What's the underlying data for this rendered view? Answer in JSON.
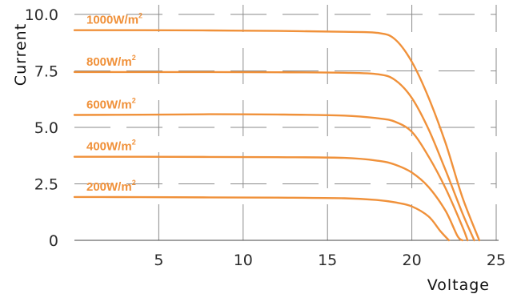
{
  "chart_data": {
    "type": "line",
    "title": "",
    "xlabel": "Voltage",
    "ylabel": "Current",
    "xlim": [
      0,
      25
    ],
    "ylim": [
      0,
      10
    ],
    "x_ticks": [
      "5",
      "10",
      "15",
      "20",
      "25"
    ],
    "y_ticks": [
      "0",
      "2.5",
      "5.0",
      "7.5",
      "10.0"
    ],
    "grid": true,
    "color": "#F0913A",
    "series": [
      {
        "name": "1000W/m²",
        "label_text": "1000W/m",
        "label_sup": "2",
        "points": [
          [
            0,
            9.3
          ],
          [
            4,
            9.3
          ],
          [
            8,
            9.29
          ],
          [
            12,
            9.27
          ],
          [
            16,
            9.23
          ],
          [
            18,
            9.18
          ],
          [
            19,
            8.9
          ],
          [
            20,
            7.9
          ],
          [
            21,
            6.3
          ],
          [
            22,
            4.3
          ],
          [
            23,
            1.9
          ],
          [
            24,
            0
          ]
        ]
      },
      {
        "name": "800W/m²",
        "label_text": "800W/m",
        "label_sup": "2",
        "points": [
          [
            0,
            7.45
          ],
          [
            4,
            7.45
          ],
          [
            8,
            7.45
          ],
          [
            12,
            7.44
          ],
          [
            16,
            7.42
          ],
          [
            18,
            7.35
          ],
          [
            19,
            7.1
          ],
          [
            20,
            6.3
          ],
          [
            21,
            4.9
          ],
          [
            22,
            3.1
          ],
          [
            23,
            1.2
          ],
          [
            23.7,
            0
          ]
        ]
      },
      {
        "name": "600W/m²",
        "label_text": "600W/m",
        "label_sup": "2",
        "points": [
          [
            0,
            5.55
          ],
          [
            4,
            5.56
          ],
          [
            8,
            5.58
          ],
          [
            12,
            5.57
          ],
          [
            16,
            5.52
          ],
          [
            18,
            5.4
          ],
          [
            19,
            5.25
          ],
          [
            20,
            4.8
          ],
          [
            21,
            3.7
          ],
          [
            22,
            2.3
          ],
          [
            23,
            0.6
          ],
          [
            23.3,
            0
          ]
        ]
      },
      {
        "name": "400W/m²",
        "label_text": "400W/m",
        "label_sup": "2",
        "points": [
          [
            0,
            3.7
          ],
          [
            4,
            3.7
          ],
          [
            8,
            3.69
          ],
          [
            12,
            3.68
          ],
          [
            16,
            3.65
          ],
          [
            18,
            3.52
          ],
          [
            19,
            3.35
          ],
          [
            20,
            3.0
          ],
          [
            21,
            2.35
          ],
          [
            22,
            1.3
          ],
          [
            22.7,
            0.2
          ],
          [
            23,
            0
          ]
        ]
      },
      {
        "name": "200W/m²",
        "label_text": "200W/m",
        "label_sup": "2",
        "points": [
          [
            0,
            1.92
          ],
          [
            4,
            1.91
          ],
          [
            8,
            1.9
          ],
          [
            12,
            1.89
          ],
          [
            16,
            1.86
          ],
          [
            18,
            1.78
          ],
          [
            19,
            1.68
          ],
          [
            20,
            1.5
          ],
          [
            21,
            1.05
          ],
          [
            21.7,
            0.4
          ],
          [
            22.2,
            0
          ]
        ]
      }
    ]
  }
}
